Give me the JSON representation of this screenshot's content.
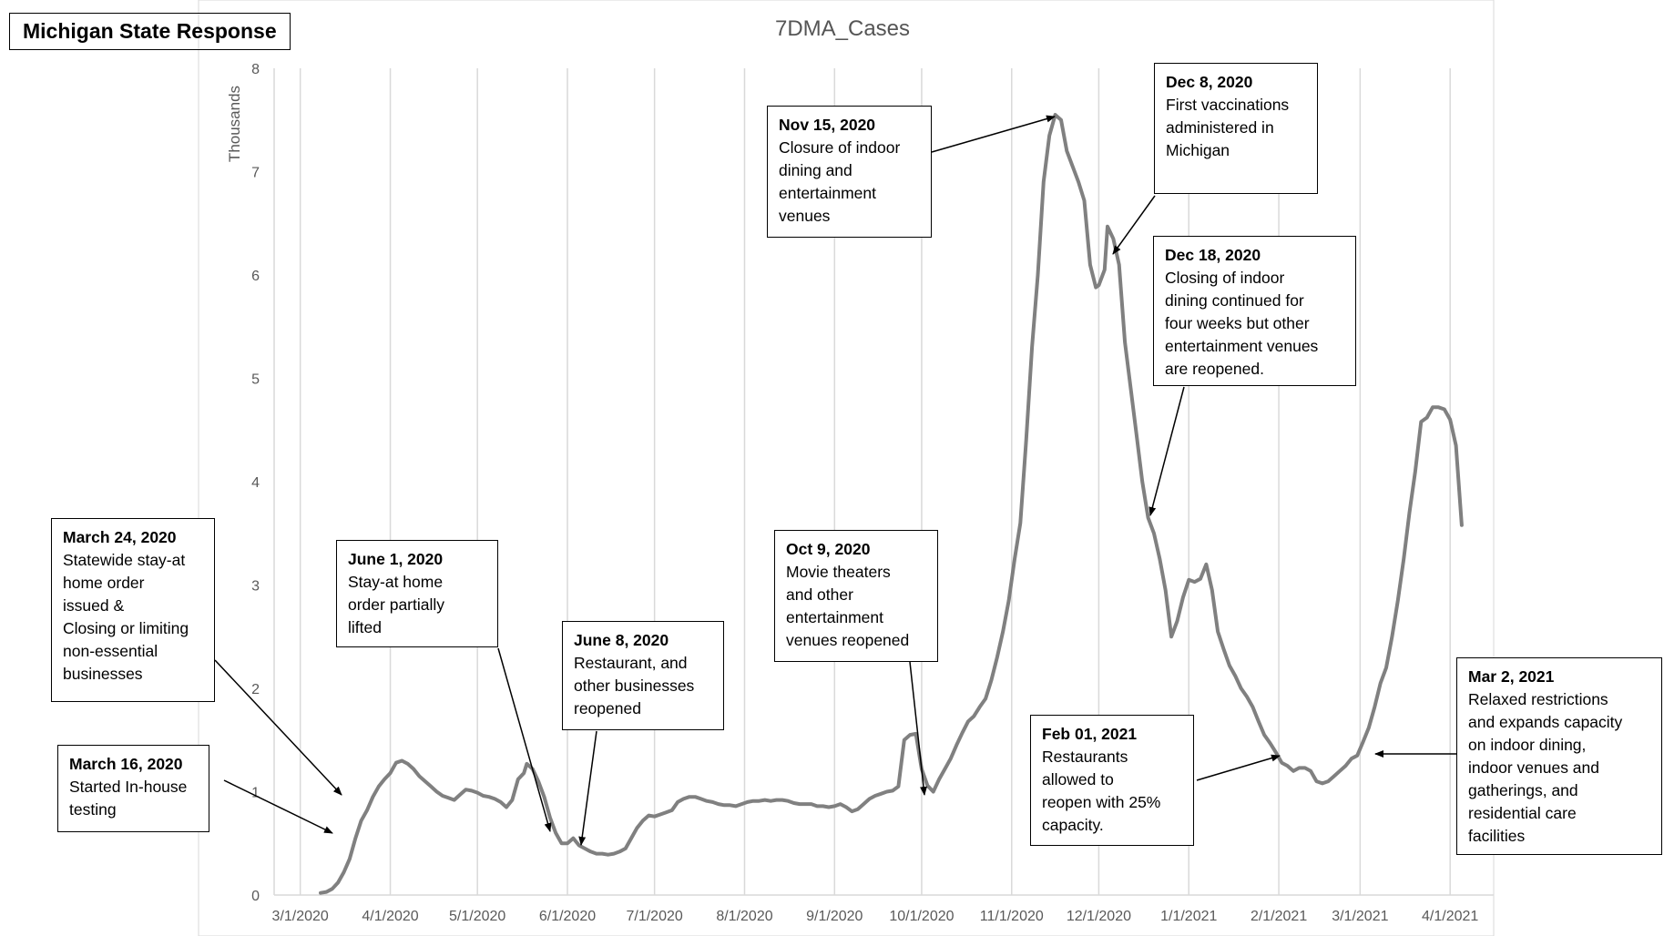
{
  "state_label": "Michigan State Response",
  "chart_data": {
    "type": "line",
    "title": "7DMA_Cases",
    "y_unit_label": "Thousands",
    "xlabel": "",
    "ylabel": "",
    "ylim": [
      0,
      8
    ],
    "y_ticks": [
      "0",
      "1",
      "2",
      "3",
      "4",
      "5",
      "6",
      "7",
      "8"
    ],
    "x_tick_labels": [
      "3/1/2020",
      "4/1/2020",
      "5/1/2020",
      "6/1/2020",
      "7/1/2020",
      "8/1/2020",
      "9/1/2020",
      "10/1/2020",
      "11/1/2020",
      "12/1/2020",
      "1/1/2021",
      "2/1/2021",
      "3/1/2021",
      "4/1/2021"
    ],
    "x_tick_dates": [
      "2020-03-01",
      "2020-04-01",
      "2020-05-01",
      "2020-06-01",
      "2020-07-01",
      "2020-08-01",
      "2020-09-01",
      "2020-10-01",
      "2020-11-01",
      "2020-12-01",
      "2021-01-01",
      "2021-02-01",
      "2021-03-01",
      "2021-04-01"
    ],
    "grid": "vertical",
    "line_color": "#808080",
    "series": [
      {
        "name": "",
        "points": [
          [
            "2020-03-08",
            0.02
          ],
          [
            "2020-03-10",
            0.03
          ],
          [
            "2020-03-12",
            0.06
          ],
          [
            "2020-03-14",
            0.12
          ],
          [
            "2020-03-16",
            0.22
          ],
          [
            "2020-03-18",
            0.35
          ],
          [
            "2020-03-20",
            0.55
          ],
          [
            "2020-03-22",
            0.72
          ],
          [
            "2020-03-24",
            0.82
          ],
          [
            "2020-03-26",
            0.95
          ],
          [
            "2020-03-28",
            1.05
          ],
          [
            "2020-03-30",
            1.12
          ],
          [
            "2020-04-01",
            1.18
          ],
          [
            "2020-04-03",
            1.28
          ],
          [
            "2020-04-05",
            1.3
          ],
          [
            "2020-04-07",
            1.27
          ],
          [
            "2020-04-09",
            1.22
          ],
          [
            "2020-04-11",
            1.15
          ],
          [
            "2020-04-13",
            1.1
          ],
          [
            "2020-04-15",
            1.05
          ],
          [
            "2020-04-17",
            1.0
          ],
          [
            "2020-04-19",
            0.96
          ],
          [
            "2020-04-21",
            0.94
          ],
          [
            "2020-04-23",
            0.92
          ],
          [
            "2020-04-25",
            0.97
          ],
          [
            "2020-04-27",
            1.02
          ],
          [
            "2020-04-29",
            1.01
          ],
          [
            "2020-05-01",
            0.99
          ],
          [
            "2020-05-03",
            0.96
          ],
          [
            "2020-05-05",
            0.95
          ],
          [
            "2020-05-07",
            0.93
          ],
          [
            "2020-05-09",
            0.9
          ],
          [
            "2020-05-11",
            0.85
          ],
          [
            "2020-05-13",
            0.92
          ],
          [
            "2020-05-15",
            1.12
          ],
          [
            "2020-05-17",
            1.18
          ],
          [
            "2020-05-18",
            1.27
          ],
          [
            "2020-05-20",
            1.22
          ],
          [
            "2020-05-22",
            1.1
          ],
          [
            "2020-05-24",
            0.95
          ],
          [
            "2020-05-26",
            0.75
          ],
          [
            "2020-05-28",
            0.6
          ],
          [
            "2020-05-30",
            0.5
          ],
          [
            "2020-06-01",
            0.5
          ],
          [
            "2020-06-03",
            0.55
          ],
          [
            "2020-06-05",
            0.48
          ],
          [
            "2020-06-07",
            0.45
          ],
          [
            "2020-06-09",
            0.42
          ],
          [
            "2020-06-11",
            0.4
          ],
          [
            "2020-06-13",
            0.4
          ],
          [
            "2020-06-15",
            0.39
          ],
          [
            "2020-06-17",
            0.4
          ],
          [
            "2020-06-19",
            0.42
          ],
          [
            "2020-06-21",
            0.45
          ],
          [
            "2020-06-23",
            0.55
          ],
          [
            "2020-06-25",
            0.65
          ],
          [
            "2020-06-27",
            0.72
          ],
          [
            "2020-06-29",
            0.77
          ],
          [
            "2020-07-01",
            0.76
          ],
          [
            "2020-07-03",
            0.78
          ],
          [
            "2020-07-05",
            0.8
          ],
          [
            "2020-07-07",
            0.82
          ],
          [
            "2020-07-09",
            0.9
          ],
          [
            "2020-07-11",
            0.93
          ],
          [
            "2020-07-13",
            0.95
          ],
          [
            "2020-07-15",
            0.95
          ],
          [
            "2020-07-17",
            0.93
          ],
          [
            "2020-07-19",
            0.91
          ],
          [
            "2020-07-21",
            0.9
          ],
          [
            "2020-07-23",
            0.88
          ],
          [
            "2020-07-25",
            0.87
          ],
          [
            "2020-07-27",
            0.87
          ],
          [
            "2020-07-29",
            0.86
          ],
          [
            "2020-07-31",
            0.88
          ],
          [
            "2020-08-02",
            0.9
          ],
          [
            "2020-08-04",
            0.91
          ],
          [
            "2020-08-06",
            0.91
          ],
          [
            "2020-08-08",
            0.92
          ],
          [
            "2020-08-10",
            0.91
          ],
          [
            "2020-08-12",
            0.92
          ],
          [
            "2020-08-14",
            0.92
          ],
          [
            "2020-08-16",
            0.91
          ],
          [
            "2020-08-18",
            0.89
          ],
          [
            "2020-08-20",
            0.88
          ],
          [
            "2020-08-22",
            0.88
          ],
          [
            "2020-08-24",
            0.88
          ],
          [
            "2020-08-26",
            0.86
          ],
          [
            "2020-08-28",
            0.86
          ],
          [
            "2020-08-30",
            0.85
          ],
          [
            "2020-09-01",
            0.86
          ],
          [
            "2020-09-03",
            0.88
          ],
          [
            "2020-09-05",
            0.85
          ],
          [
            "2020-09-07",
            0.81
          ],
          [
            "2020-09-09",
            0.83
          ],
          [
            "2020-09-11",
            0.88
          ],
          [
            "2020-09-13",
            0.93
          ],
          [
            "2020-09-15",
            0.96
          ],
          [
            "2020-09-17",
            0.98
          ],
          [
            "2020-09-19",
            1.0
          ],
          [
            "2020-09-21",
            1.01
          ],
          [
            "2020-09-23",
            1.05
          ],
          [
            "2020-09-25",
            1.5
          ],
          [
            "2020-09-27",
            1.55
          ],
          [
            "2020-09-29",
            1.56
          ],
          [
            "2020-10-01",
            1.22
          ],
          [
            "2020-10-03",
            1.06
          ],
          [
            "2020-10-05",
            1.0
          ],
          [
            "2020-10-07",
            1.12
          ],
          [
            "2020-10-09",
            1.22
          ],
          [
            "2020-10-11",
            1.32
          ],
          [
            "2020-10-13",
            1.45
          ],
          [
            "2020-10-15",
            1.57
          ],
          [
            "2020-10-17",
            1.68
          ],
          [
            "2020-10-19",
            1.73
          ],
          [
            "2020-10-21",
            1.82
          ],
          [
            "2020-10-23",
            1.9
          ],
          [
            "2020-10-25",
            2.08
          ],
          [
            "2020-10-27",
            2.3
          ],
          [
            "2020-10-29",
            2.55
          ],
          [
            "2020-10-31",
            2.85
          ],
          [
            "2020-11-02",
            3.25
          ],
          [
            "2020-11-04",
            3.6
          ],
          [
            "2020-11-06",
            4.4
          ],
          [
            "2020-11-08",
            5.3
          ],
          [
            "2020-11-10",
            6.0
          ],
          [
            "2020-11-12",
            6.9
          ],
          [
            "2020-11-14",
            7.35
          ],
          [
            "2020-11-16",
            7.55
          ],
          [
            "2020-11-18",
            7.5
          ],
          [
            "2020-11-20",
            7.2
          ],
          [
            "2020-11-22",
            7.05
          ],
          [
            "2020-11-24",
            6.9
          ],
          [
            "2020-11-26",
            6.72
          ],
          [
            "2020-11-28",
            6.1
          ],
          [
            "2020-11-30",
            5.88
          ],
          [
            "2020-12-01",
            5.9
          ],
          [
            "2020-12-03",
            6.05
          ],
          [
            "2020-12-04",
            6.47
          ],
          [
            "2020-12-06",
            6.35
          ],
          [
            "2020-12-08",
            6.1
          ],
          [
            "2020-12-10",
            5.35
          ],
          [
            "2020-12-12",
            4.9
          ],
          [
            "2020-12-14",
            4.45
          ],
          [
            "2020-12-16",
            4.0
          ],
          [
            "2020-12-18",
            3.65
          ],
          [
            "2020-12-20",
            3.5
          ],
          [
            "2020-12-22",
            3.25
          ],
          [
            "2020-12-24",
            2.95
          ],
          [
            "2020-12-26",
            2.5
          ],
          [
            "2020-12-28",
            2.65
          ],
          [
            "2020-12-30",
            2.88
          ],
          [
            "2021-01-01",
            3.05
          ],
          [
            "2021-01-03",
            3.03
          ],
          [
            "2021-01-05",
            3.06
          ],
          [
            "2021-01-07",
            3.2
          ],
          [
            "2021-01-09",
            2.95
          ],
          [
            "2021-01-11",
            2.55
          ],
          [
            "2021-01-13",
            2.38
          ],
          [
            "2021-01-15",
            2.22
          ],
          [
            "2021-01-17",
            2.12
          ],
          [
            "2021-01-19",
            2.0
          ],
          [
            "2021-01-21",
            1.92
          ],
          [
            "2021-01-23",
            1.82
          ],
          [
            "2021-01-25",
            1.68
          ],
          [
            "2021-01-27",
            1.55
          ],
          [
            "2021-01-29",
            1.47
          ],
          [
            "2021-01-31",
            1.38
          ],
          [
            "2021-02-02",
            1.28
          ],
          [
            "2021-02-04",
            1.25
          ],
          [
            "2021-02-06",
            1.2
          ],
          [
            "2021-02-08",
            1.23
          ],
          [
            "2021-02-10",
            1.23
          ],
          [
            "2021-02-12",
            1.2
          ],
          [
            "2021-02-14",
            1.1
          ],
          [
            "2021-02-16",
            1.08
          ],
          [
            "2021-02-18",
            1.1
          ],
          [
            "2021-02-20",
            1.15
          ],
          [
            "2021-02-22",
            1.2
          ],
          [
            "2021-02-24",
            1.25
          ],
          [
            "2021-02-26",
            1.32
          ],
          [
            "2021-02-28",
            1.35
          ],
          [
            "2021-03-02",
            1.48
          ],
          [
            "2021-03-04",
            1.62
          ],
          [
            "2021-03-06",
            1.82
          ],
          [
            "2021-03-08",
            2.05
          ],
          [
            "2021-03-10",
            2.2
          ],
          [
            "2021-03-12",
            2.5
          ],
          [
            "2021-03-14",
            2.85
          ],
          [
            "2021-03-16",
            3.25
          ],
          [
            "2021-03-18",
            3.7
          ],
          [
            "2021-03-20",
            4.1
          ],
          [
            "2021-03-22",
            4.58
          ],
          [
            "2021-03-24",
            4.62
          ],
          [
            "2021-03-26",
            4.72
          ],
          [
            "2021-03-28",
            4.72
          ],
          [
            "2021-03-30",
            4.7
          ],
          [
            "2021-04-01",
            4.6
          ],
          [
            "2021-04-03",
            4.35
          ],
          [
            "2021-04-05",
            3.58
          ]
        ]
      }
    ],
    "annotations": [
      {
        "title": "March 16, 2020",
        "lines": [
          "Started In-house",
          "testing"
        ],
        "date": "2020-03-16"
      },
      {
        "title": "March 24, 2020",
        "lines": [
          "Statewide stay-at",
          "home order",
          "issued &",
          "Closing or limiting",
          "non-essential",
          "businesses"
        ],
        "date": "2020-03-24"
      },
      {
        "title": "June 1, 2020",
        "lines": [
          "Stay-at home",
          "order partially",
          "lifted"
        ],
        "date": "2020-06-01"
      },
      {
        "title": "June 8, 2020",
        "lines": [
          "Restaurant, and",
          "other businesses",
          "reopened"
        ],
        "date": "2020-06-08"
      },
      {
        "title": "Oct 9, 2020",
        "lines": [
          "Movie theaters",
          "and other",
          "entertainment",
          "venues reopened"
        ],
        "date": "2020-10-09"
      },
      {
        "title": "Nov 15, 2020",
        "lines": [
          "Closure of indoor",
          "dining and",
          "entertainment",
          "venues"
        ],
        "date": "2020-11-15"
      },
      {
        "title": "Dec 8, 2020",
        "lines": [
          "First vaccinations",
          "administered in",
          "Michigan"
        ],
        "date": "2020-12-08"
      },
      {
        "title": "Dec 18, 2020",
        "lines": [
          "Closing of indoor",
          "dining continued for",
          "four weeks but other",
          "entertainment venues",
          "are reopened."
        ],
        "date": "2020-12-18"
      },
      {
        "title": "Feb 01, 2021",
        "lines": [
          "Restaurants",
          "allowed to",
          "reopen with 25%",
          "capacity."
        ],
        "date": "2021-02-01"
      },
      {
        "title": "Mar 2, 2021",
        "lines": [
          "Relaxed restrictions",
          "and expands capacity",
          "on indoor dining,",
          "indoor venues and",
          "gatherings, and",
          "residential care",
          "facilities"
        ],
        "date": "2021-03-02"
      }
    ]
  }
}
